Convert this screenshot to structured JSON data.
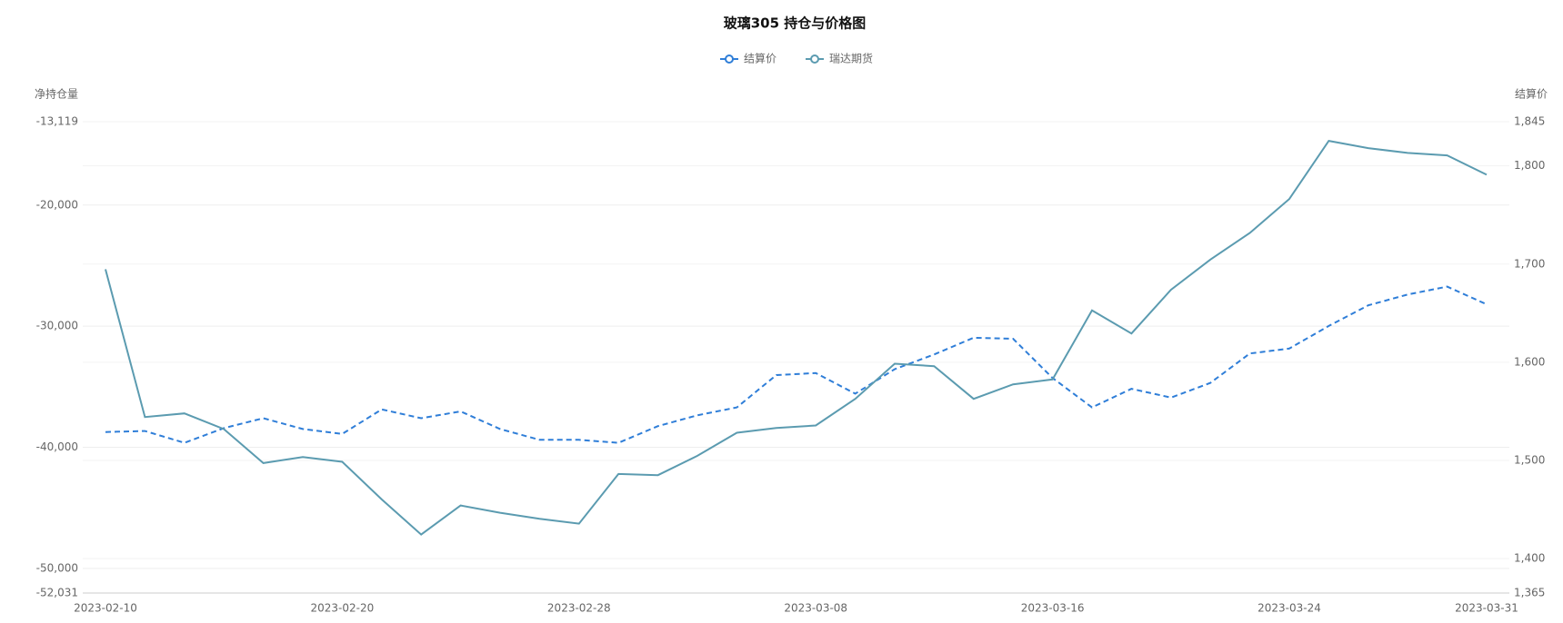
{
  "chart_data": {
    "type": "line",
    "title": "玻璃305 持仓与价格图",
    "ylabel": "净持仓量",
    "y2label": "结算价",
    "categories": [
      "2023-02-10",
      null,
      null,
      null,
      null,
      null,
      "2023-02-20",
      null,
      null,
      null,
      null,
      null,
      "2023-02-28",
      null,
      null,
      null,
      null,
      null,
      "2023-03-08",
      null,
      null,
      null,
      null,
      null,
      "2023-03-16",
      null,
      null,
      null,
      null,
      null,
      "2023-03-24",
      null,
      null,
      null,
      null,
      "2023-03-31"
    ],
    "ylim": [
      -52031,
      -13119
    ],
    "yticks": [
      {
        "value": -13119,
        "label": "-13,119"
      },
      {
        "value": -20000,
        "label": "-20,000"
      },
      {
        "value": -30000,
        "label": "-30,000"
      },
      {
        "value": -40000,
        "label": "-40,000"
      },
      {
        "value": -50000,
        "label": "-50,000"
      },
      {
        "value": -52031,
        "label": "-52,031"
      }
    ],
    "y2lim": [
      1365,
      1845
    ],
    "y2ticks": [
      {
        "value": 1365,
        "label": "1,365"
      },
      {
        "value": 1400,
        "label": "1,400"
      },
      {
        "value": 1500,
        "label": "1,500"
      },
      {
        "value": 1600,
        "label": "1,600"
      },
      {
        "value": 1700,
        "label": "1,700"
      },
      {
        "value": 1800,
        "label": "1,800"
      },
      {
        "value": 1845,
        "label": "1,845"
      }
    ],
    "grid": true,
    "series": [
      {
        "name": "结算价",
        "color": "#2f7ed8",
        "dashed": true,
        "axis": "y2",
        "values": [
          1529,
          1530,
          1518,
          1533,
          1543,
          1532,
          1527,
          1552,
          1543,
          1550,
          1532,
          1521,
          1521,
          1518,
          1535,
          1546,
          1554,
          1587,
          1589,
          1568,
          1593,
          1608,
          1625,
          1624,
          1584,
          1554,
          1573,
          1564,
          1579,
          1609,
          1614,
          1637,
          1658,
          1669,
          1677,
          1659
        ]
      },
      {
        "name": "瑞达期货",
        "color": "#5b9bb0",
        "dashed": false,
        "values": [
          -25300,
          -37500,
          -37200,
          -38500,
          -41300,
          -40800,
          -41200,
          -44300,
          -47200,
          -44800,
          -45400,
          -45900,
          -46300,
          -42200,
          -42300,
          -40700,
          -38800,
          -38400,
          -38200,
          -36000,
          -33100,
          -33300,
          -36000,
          -34800,
          -34400,
          -28700,
          -30600,
          -27000,
          -24500,
          -22300,
          -19500,
          -14700,
          -15300,
          -15700,
          -15900,
          -17500
        ]
      }
    ]
  }
}
